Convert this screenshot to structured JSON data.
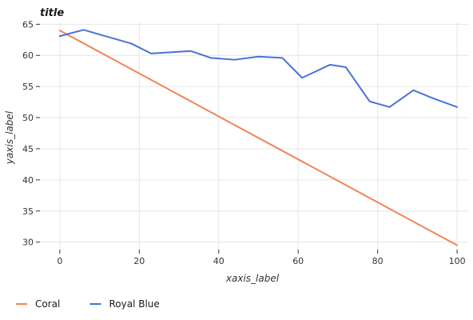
{
  "chart_data": {
    "type": "line",
    "title": "title",
    "xlabel": "xaxis_label",
    "ylabel": "yaxis_label",
    "xlim": [
      -5,
      103
    ],
    "ylim": [
      28.8,
      65.3
    ],
    "grid": true,
    "x_ticks": [
      0,
      20,
      40,
      60,
      80,
      100
    ],
    "y_ticks": [
      30,
      35,
      40,
      45,
      50,
      55,
      60,
      65
    ],
    "legend_position": "bottom-left",
    "series": [
      {
        "name": "Coral",
        "color": "#f08456",
        "x": [
          0,
          100
        ],
        "y": [
          64.0,
          29.5
        ]
      },
      {
        "name": "Royal Blue",
        "color": "#4a72d6",
        "x": [
          0,
          6,
          18,
          23,
          33,
          38,
          44,
          50,
          56,
          61,
          68,
          72,
          78,
          83,
          89,
          94,
          100
        ],
        "y": [
          63.1,
          64.1,
          61.9,
          60.3,
          60.7,
          59.6,
          59.3,
          59.8,
          59.6,
          56.4,
          58.5,
          58.1,
          52.6,
          51.7,
          54.4,
          53.1,
          51.7
        ]
      }
    ]
  }
}
